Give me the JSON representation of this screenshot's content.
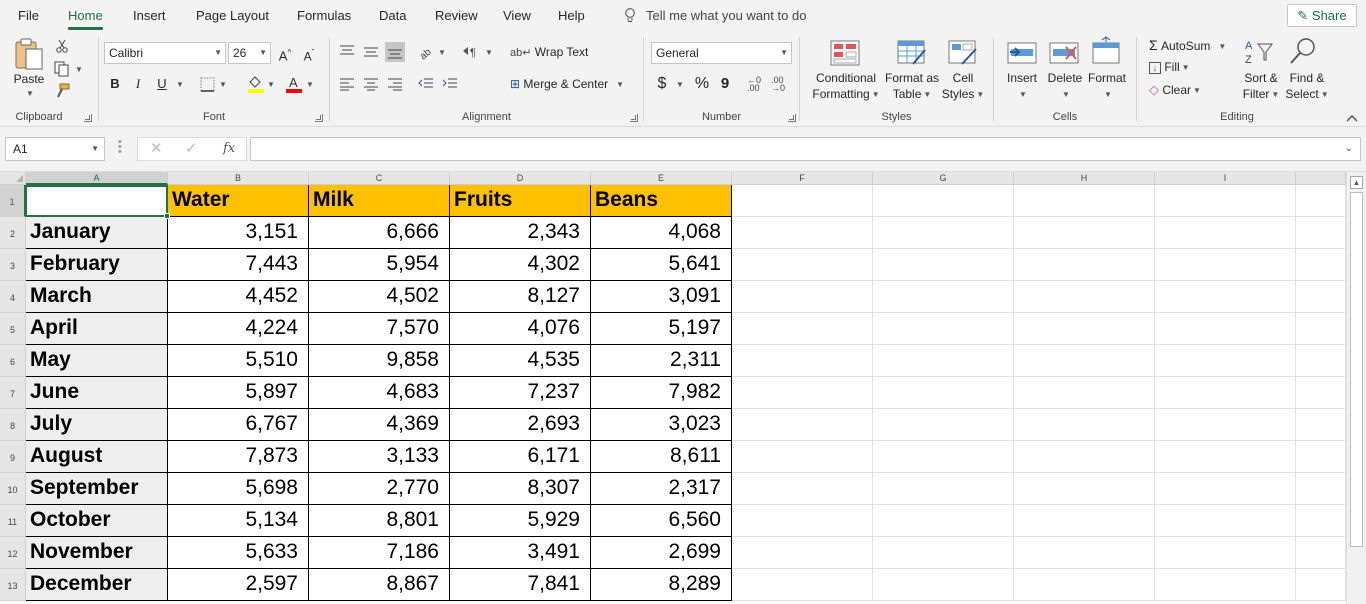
{
  "menu": {
    "tabs": [
      "File",
      "Home",
      "Insert",
      "Page Layout",
      "Formulas",
      "Data",
      "Review",
      "View",
      "Help"
    ],
    "active": "Home",
    "tell_me": "Tell me what you want to do",
    "share": "Share"
  },
  "ribbon": {
    "clipboard": {
      "title": "Clipboard",
      "paste": "Paste"
    },
    "font": {
      "title": "Font",
      "name": "Calibri",
      "size": "26",
      "bold": "B",
      "italic": "I",
      "underline": "U",
      "grow": "A",
      "shrink": "A"
    },
    "alignment": {
      "title": "Alignment",
      "wrap_text": "Wrap Text",
      "merge_center": "Merge & Center"
    },
    "number": {
      "title": "Number",
      "format": "General",
      "currency": "$",
      "percent": "%",
      "comma": "9"
    },
    "styles": {
      "title": "Styles",
      "conditional_1": "Conditional",
      "conditional_2": "Formatting",
      "format_table_1": "Format as",
      "format_table_2": "Table",
      "cell_styles_1": "Cell",
      "cell_styles_2": "Styles"
    },
    "cells": {
      "title": "Cells",
      "insert": "Insert",
      "delete": "Delete",
      "format": "Format"
    },
    "editing": {
      "title": "Editing",
      "autosum": "AutoSum",
      "fill": "Fill",
      "clear": "Clear",
      "sort_1": "Sort &",
      "sort_2": "Filter",
      "find_1": "Find &",
      "find_2": "Select"
    }
  },
  "formula_bar": {
    "name_box": "A1",
    "fx": "fx",
    "formula": ""
  },
  "columns": [
    "A",
    "B",
    "C",
    "D",
    "E",
    "F",
    "G",
    "H",
    "I"
  ],
  "rows": [
    "1",
    "2",
    "3",
    "4",
    "5",
    "6",
    "7",
    "8",
    "9",
    "10",
    "11",
    "12",
    "13"
  ],
  "sheet": {
    "headers": [
      "",
      "Water",
      "Milk",
      "Fruits",
      "Beans"
    ],
    "data": [
      [
        "January",
        "3,151",
        "6,666",
        "2,343",
        "4,068"
      ],
      [
        "February",
        "7,443",
        "5,954",
        "4,302",
        "5,641"
      ],
      [
        "March",
        "4,452",
        "4,502",
        "8,127",
        "3,091"
      ],
      [
        "April",
        "4,224",
        "7,570",
        "4,076",
        "5,197"
      ],
      [
        "May",
        "5,510",
        "9,858",
        "4,535",
        "2,311"
      ],
      [
        "June",
        "5,897",
        "4,683",
        "7,237",
        "7,982"
      ],
      [
        "July",
        "6,767",
        "4,369",
        "2,693",
        "3,023"
      ],
      [
        "August",
        "7,873",
        "3,133",
        "6,171",
        "8,611"
      ],
      [
        "September",
        "5,698",
        "2,770",
        "8,307",
        "2,317"
      ],
      [
        "October",
        "5,134",
        "8,801",
        "5,929",
        "6,560"
      ],
      [
        "November",
        "5,633",
        "7,186",
        "3,491",
        "2,699"
      ],
      [
        "December",
        "2,597",
        "8,867",
        "7,841",
        "8,289"
      ]
    ]
  },
  "colors": {
    "accent": "#217346",
    "header_fill": "#ffc000",
    "shade": "#eeeeee"
  }
}
